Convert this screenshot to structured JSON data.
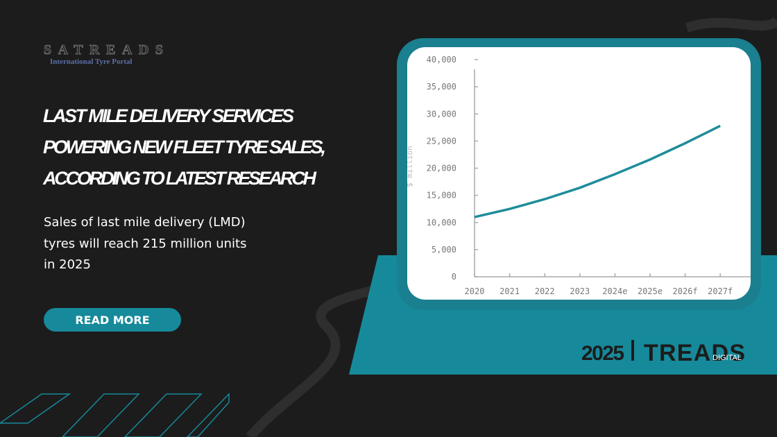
{
  "logo": {
    "name": "SATREADS",
    "tagline": "International Tyre Portal"
  },
  "headline": {
    "lines": [
      "LAST MILE DELIVERY SERVICES",
      "POWERING NEW FLEET TYRE SALES,",
      "ACCORDING TO LATEST RESEARCH"
    ]
  },
  "body": {
    "lines": [
      "Sales of last mile delivery (LMD)",
      "tyres will reach 215 million units",
      "in 2025"
    ]
  },
  "button": {
    "label": "READ MORE"
  },
  "brand": {
    "year": "2025",
    "name": "TREADS",
    "suffix": "DIGITAL"
  },
  "chart_data": {
    "type": "line",
    "ylabel": "$ million",
    "categories": [
      "2020",
      "2021",
      "2022",
      "2023",
      "2024e",
      "2025e",
      "2026f",
      "2027f"
    ],
    "values": [
      11000,
      12500,
      14300,
      16400,
      18900,
      21600,
      24600,
      27800
    ],
    "color": "#1e8c9b",
    "ylim": [
      0,
      40000
    ],
    "yticks": [
      0,
      {
        "value": 5000,
        "label": "5,000"
      },
      {
        "value": 10000,
        "label": "10,000"
      },
      {
        "value": 15000,
        "label": "15,000"
      },
      {
        "value": 20000,
        "label": "20,000"
      },
      {
        "value": 25000,
        "label": "25,000"
      },
      {
        "value": 30000,
        "label": "30,000"
      },
      {
        "value": 35000,
        "label": "35,000"
      },
      {
        "value": 40000,
        "label": "40,000"
      }
    ]
  }
}
